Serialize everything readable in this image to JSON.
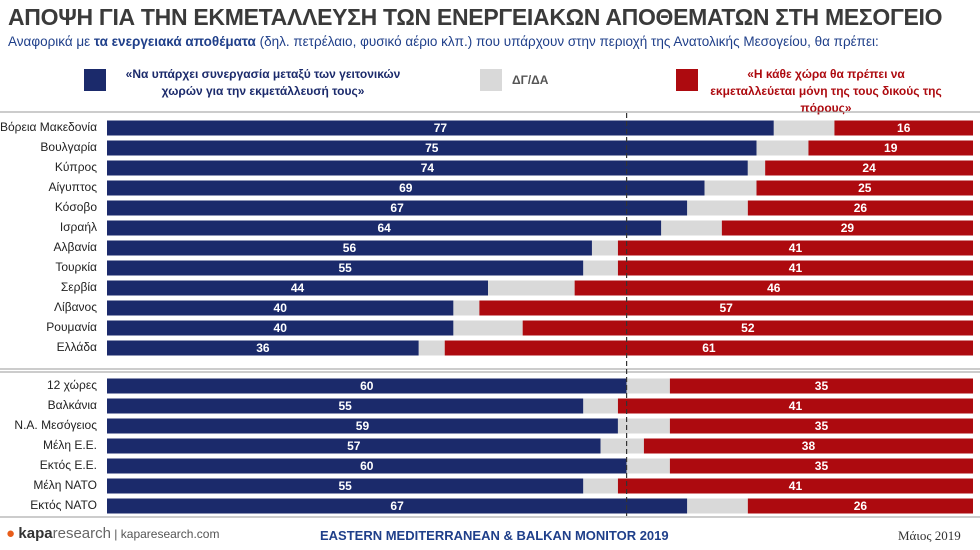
{
  "chart_data": {
    "type": "stacked-bar-horizontal",
    "title": "ΑΠΟΨΗ ΓΙΑ ΤΗΝ ΕΚΜΕΤΑΛΛΕΥΣΗ ΤΩΝ ΕΝΕΡΓΕΙΑΚΩΝ ΑΠΟΘΕΜΑΤΩΝ ΣΤΗ ΜΕΣΟΓΕΙΟ",
    "subtitle_parts": [
      "Αναφορικά με ",
      "τα ενεργειακά αποθέματα",
      " (δηλ. πετρέλαιο, φυσικό αέριο κλπ.) που υπάρχουν στην περιοχή της Ανατολικής Μεσογείου, θα πρέπει:"
    ],
    "categories": [
      "Βόρεια Μακεδονία",
      "Βουλγαρία",
      "Κύπρος",
      "Αίγυπτος",
      "Κόσοβο",
      "Ισραήλ",
      "Αλβανία",
      "Τουρκία",
      "Σερβία",
      "Λίβανος",
      "Ρουμανία",
      "Ελλάδα",
      "12 χώρες",
      "Βαλκάνια",
      "Ν.Α. Μεσόγειος",
      "Μέλη Ε.Ε.",
      "Εκτός Ε.Ε.",
      "Μέλη ΝΑΤΟ",
      "Εκτός ΝΑΤΟ"
    ],
    "xlim": [
      0,
      100
    ],
    "series": [
      {
        "name": "«Να υπάρχει συνεργασία μεταξύ των γειτονικών χωρών για την εκμετάλλευσή τους»",
        "color": "#1b2a6b",
        "labels": true,
        "values": [
          77,
          75,
          74,
          69,
          67,
          64,
          56,
          55,
          44,
          40,
          40,
          36,
          60,
          55,
          59,
          57,
          60,
          55,
          67
        ]
      },
      {
        "name": "ΔΓ/ΔΑ",
        "color": "#d9d9d9",
        "labels": false,
        "values": [
          7,
          6,
          2,
          6,
          7,
          7,
          3,
          4,
          10,
          3,
          8,
          3,
          5,
          4,
          6,
          5,
          5,
          4,
          7
        ]
      },
      {
        "name": "«Η κάθε χώρα θα πρέπει να εκμεταλλεύεται μόνη της τους δικούς της πόρους»",
        "color": "#ad0a0f",
        "labels": true,
        "values": [
          16,
          19,
          24,
          25,
          26,
          29,
          41,
          41,
          46,
          57,
          52,
          61,
          35,
          41,
          35,
          38,
          35,
          41,
          26
        ]
      }
    ]
  },
  "footer": {
    "logo_a": "kapa",
    "logo_b": "research",
    "site": "kaparesearch.com",
    "center": "EASTERN MEDITERRANEAN & BALKAN MONITOR 2019",
    "date": "Μάιος 2019"
  }
}
